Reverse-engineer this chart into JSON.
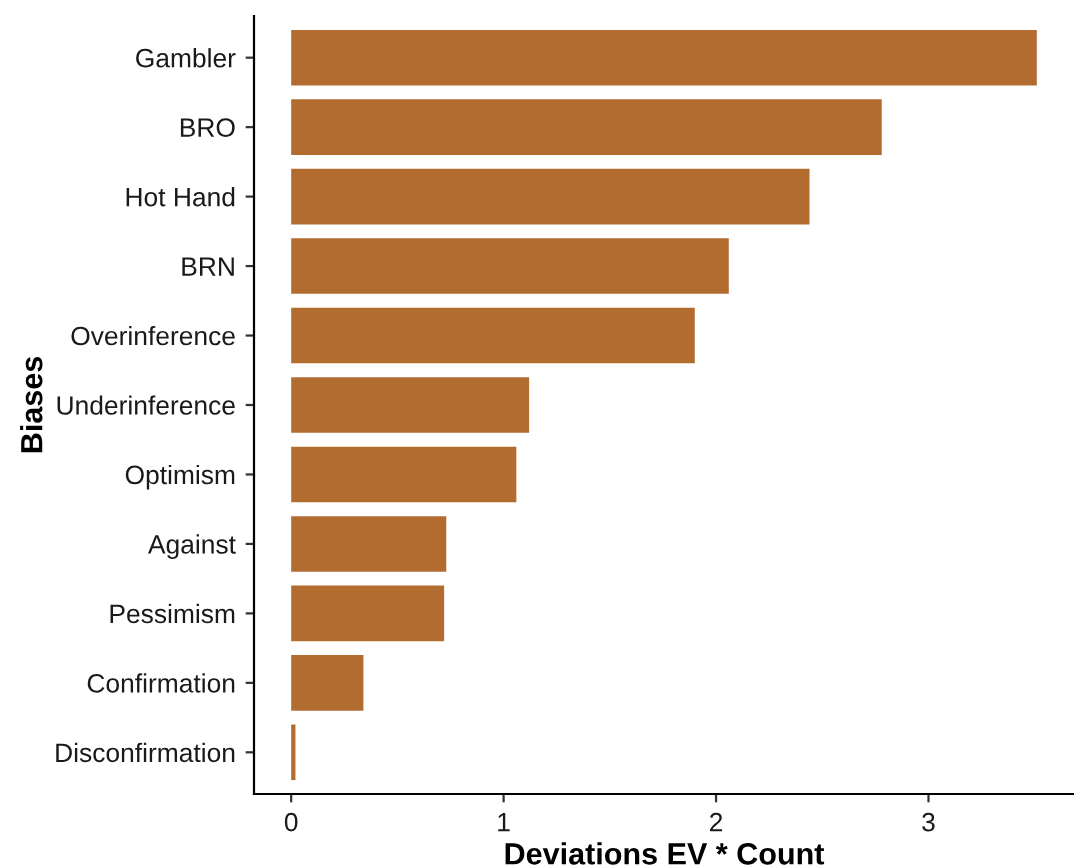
{
  "chart_data": {
    "type": "bar",
    "orientation": "horizontal",
    "xlabel": "Deviations EV * Count",
    "ylabel": "Biases",
    "categories": [
      "Gambler",
      "BRO",
      "Hot Hand",
      "BRN",
      "Overinference",
      "Underinference",
      "Optimism",
      "Against",
      "Pessimism",
      "Confirmation",
      "Disconfirmation"
    ],
    "values": [
      3.51,
      2.78,
      2.44,
      2.06,
      1.9,
      1.12,
      1.06,
      0.73,
      0.72,
      0.34,
      0.02
    ],
    "color": "#b36c30",
    "xlim": [
      -0.175,
      3.685
    ],
    "xticks": [
      0,
      1,
      2,
      3
    ],
    "grid": false
  }
}
